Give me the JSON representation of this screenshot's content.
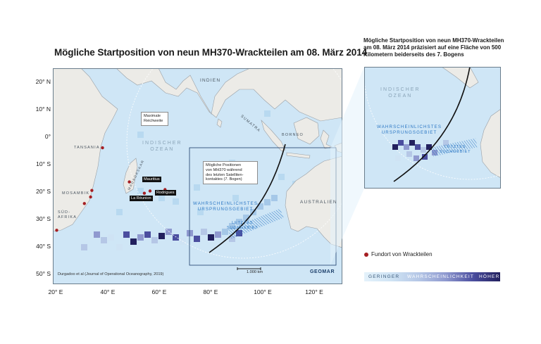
{
  "title": "Mögliche Startposition von neun MH370-Wrackteilen am 08. März 2014",
  "inset_caption": "Mögliche Startposition von neun MH370-Wrackteilen am 08. März 2014 präzisiert auf eine Fläche von 500 Kilometern beiderseits des 7. Bogens",
  "axes": {
    "y_ticks": [
      {
        "value": 20,
        "label": "20° N"
      },
      {
        "value": 10,
        "label": "10° N"
      },
      {
        "value": 0,
        "label": "0°"
      },
      {
        "value": -10,
        "label": "10° S"
      },
      {
        "value": -20,
        "label": "20° S"
      },
      {
        "value": -30,
        "label": "30° S"
      },
      {
        "value": -40,
        "label": "40° S"
      },
      {
        "value": -50,
        "label": "50° S"
      }
    ],
    "x_ticks": [
      {
        "value": 20,
        "label": "20° E"
      },
      {
        "value": 40,
        "label": "40° E"
      },
      {
        "value": 60,
        "label": "60° E"
      },
      {
        "value": 80,
        "label": "80° E"
      },
      {
        "value": 100,
        "label": "100° E"
      },
      {
        "value": 120,
        "label": "120° E"
      }
    ],
    "lon_range": [
      20,
      132
    ],
    "lat_range": [
      -53,
      23
    ]
  },
  "map_labels": {
    "indien": "INDIEN",
    "sumatra": "SUMATRA",
    "borneo": "BORNEO",
    "australien": "AUSTRALIEN",
    "tansania": "TANSANIA",
    "madagaskar": "MADAGASKAR",
    "mosambik": "MOSAMBIK",
    "suedafrika": "SÜD-\nAFRIKA",
    "ocean": "INDISCHER\nOZEAN"
  },
  "callouts": {
    "reach": "Maximale\nReichweite",
    "positions": "Mögliche Positionen\nvon MH370 während\ndes letzten Satelliten-\nkontaktes (7. Bogen)"
  },
  "islands": {
    "mauritius": "Mauritius",
    "reunion": "La Réunion",
    "rodrigues": "Rodrigues"
  },
  "origin_label": "WAHRSCHEINLICHSTES\nURSPRUNGSGEBIET",
  "search_label": "LETZTES\nSUCHGEBIET",
  "inset": {
    "ocean": "INDISCHER\nOZEAN",
    "origin_label": "WAHRSCHEINLICHSTES\nURSPRUNGSGEBIET",
    "search_label": "LETZTES\nSUCHGEBIET"
  },
  "scale_label": "1.000 km",
  "citation": "Durgadoo et al (Journal of Operational Oceanography, 2019)",
  "logo_text": "GEOMAR",
  "legend": {
    "debris_label": "Fundort von Wrackteilen",
    "low": "GERINGER",
    "title": "WAHRSCHEINLICHKEIT",
    "high": "HÖHER"
  },
  "debris_sites": [
    {
      "name": "Tansania",
      "lon": 39.2,
      "lat": -5.0
    },
    {
      "name": "Mosambik 1",
      "lon": 35.1,
      "lat": -20.0
    },
    {
      "name": "Mosambik 2",
      "lon": 34.6,
      "lat": -22.3
    },
    {
      "name": "Mosambik 3",
      "lon": 32.2,
      "lat": -24.6
    },
    {
      "name": "Mauritius",
      "lon": 57.6,
      "lat": -20.2
    },
    {
      "name": "La Réunion",
      "lon": 55.4,
      "lat": -21.0
    },
    {
      "name": "Rodrigues",
      "lon": 63.4,
      "lat": -19.7
    },
    {
      "name": "Madagaskar",
      "lon": 49.6,
      "lat": -17.0
    },
    {
      "name": "Südafrika",
      "lon": 21.5,
      "lat": -34.0
    }
  ],
  "colors": {
    "ocean": "#cfe6f6",
    "land": "#ecebe7",
    "arc": "#111111",
    "debris": "#a51e22",
    "accent": "#2b77c4"
  }
}
